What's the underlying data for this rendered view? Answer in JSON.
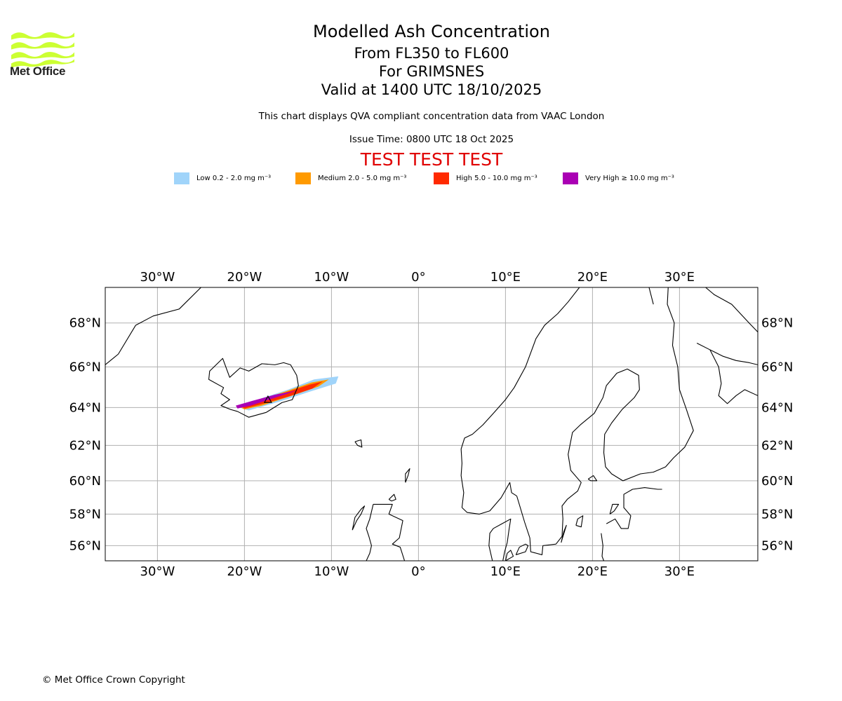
{
  "header": {
    "org_name": "Met Office",
    "title": "Modelled Ash Concentration",
    "flight_levels": "From FL350 to FL600",
    "volcano": "For GRIMSNES",
    "valid_time": "Valid at 1400 UTC 18/10/2025",
    "description": "This chart displays QVA compliant concentration data from VAAC London",
    "issue_time": "Issue Time: 0800 UTC 18 Oct 2025",
    "test_banner": "TEST TEST TEST"
  },
  "legend": [
    {
      "label": "Low 0.2 - 2.0 mg m⁻³",
      "color": "#a0d4fa"
    },
    {
      "label": "Medium 2.0 - 5.0 mg m⁻³",
      "color": "#ff9a00"
    },
    {
      "label": "High 5.0 - 10.0 mg m⁻³",
      "color": "#ff2a00"
    },
    {
      "label": "Very High ≥ 10.0 mg m⁻³",
      "color": "#aa00b4"
    }
  ],
  "map": {
    "lon_range": [
      -36,
      39
    ],
    "lat_range": [
      55,
      69.5
    ],
    "lon_ticks": [
      {
        "value": -30,
        "label": "30°W"
      },
      {
        "value": -20,
        "label": "20°W"
      },
      {
        "value": -10,
        "label": "10°W"
      },
      {
        "value": 0,
        "label": "0°"
      },
      {
        "value": 10,
        "label": "10°E"
      },
      {
        "value": 20,
        "label": "20°E"
      },
      {
        "value": 30,
        "label": "30°E"
      }
    ],
    "lat_ticks": [
      {
        "value": 68,
        "label": "68°N"
      },
      {
        "value": 66,
        "label": "66°N"
      },
      {
        "value": 64,
        "label": "64°N"
      },
      {
        "value": 62,
        "label": "62°N"
      },
      {
        "value": 60,
        "label": "60°N"
      },
      {
        "value": 58,
        "label": "58°N"
      },
      {
        "value": 56,
        "label": "56°N"
      }
    ],
    "ash_plume": {
      "source_lonlat": [
        -17.3,
        64.4
      ],
      "low": [
        [
          -20.6,
          64.0
        ],
        [
          -18.5,
          64.4
        ],
        [
          -15.0,
          64.9
        ],
        [
          -12.0,
          65.4
        ],
        [
          -9.2,
          65.55
        ],
        [
          -9.5,
          65.2
        ],
        [
          -12.5,
          64.8
        ],
        [
          -16.0,
          64.3
        ],
        [
          -19.5,
          63.85
        ]
      ],
      "medium": [
        [
          -20.4,
          64.0
        ],
        [
          -18.5,
          64.35
        ],
        [
          -15.0,
          64.85
        ],
        [
          -12.3,
          65.25
        ],
        [
          -10.3,
          65.4
        ],
        [
          -11.5,
          65.05
        ],
        [
          -14.5,
          64.6
        ],
        [
          -18.0,
          64.1
        ],
        [
          -20.0,
          63.9
        ]
      ],
      "high": [
        [
          -20.3,
          64.05
        ],
        [
          -18.0,
          64.4
        ],
        [
          -15.0,
          64.8
        ],
        [
          -12.5,
          65.15
        ],
        [
          -11.0,
          65.3
        ],
        [
          -12.2,
          64.95
        ],
        [
          -15.0,
          64.55
        ],
        [
          -18.2,
          64.15
        ],
        [
          -20.0,
          63.95
        ]
      ],
      "very_high": [
        [
          -21.0,
          64.1
        ],
        [
          -19.0,
          64.35
        ],
        [
          -16.5,
          64.65
        ],
        [
          -14.0,
          64.85
        ],
        [
          -16.8,
          64.45
        ],
        [
          -19.3,
          64.1
        ],
        [
          -20.8,
          63.95
        ]
      ]
    },
    "coastlines": [
      [
        [
          -20.8,
          63.8
        ],
        [
          -19.5,
          63.5
        ],
        [
          -17.5,
          63.75
        ],
        [
          -15.7,
          64.25
        ],
        [
          -14.5,
          64.4
        ],
        [
          -13.8,
          65.1
        ],
        [
          -14.0,
          65.6
        ],
        [
          -14.7,
          66.1
        ],
        [
          -15.5,
          66.2
        ],
        [
          -16.5,
          66.1
        ],
        [
          -18.0,
          66.15
        ],
        [
          -19.5,
          65.8
        ],
        [
          -20.5,
          65.95
        ],
        [
          -21.7,
          65.5
        ],
        [
          -22.5,
          66.4
        ],
        [
          -24.0,
          65.8
        ],
        [
          -24.1,
          65.4
        ],
        [
          -22.4,
          65.0
        ],
        [
          -22.7,
          64.7
        ],
        [
          -21.7,
          64.4
        ],
        [
          -22.7,
          64.1
        ],
        [
          -21.6,
          63.9
        ],
        [
          -20.8,
          63.8
        ]
      ],
      [
        [
          -36,
          66.1
        ],
        [
          -34.5,
          66.6
        ],
        [
          -32.5,
          67.9
        ],
        [
          -30.5,
          68.3
        ],
        [
          -27.5,
          68.6
        ],
        [
          -25.0,
          69.5
        ]
      ],
      [
        [
          -7.3,
          62.2
        ],
        [
          -6.6,
          62.3
        ],
        [
          -6.5,
          61.9
        ],
        [
          -7.0,
          62.0
        ],
        [
          -7.3,
          62.2
        ]
      ],
      [
        [
          -5.2,
          58.6
        ],
        [
          -3.0,
          58.6
        ],
        [
          -3.4,
          58.0
        ],
        [
          -1.8,
          57.6
        ],
        [
          -2.2,
          56.5
        ],
        [
          -3.0,
          56.1
        ],
        [
          -2.1,
          55.9
        ],
        [
          -1.6,
          55.0
        ]
      ],
      [
        [
          -6.0,
          55.0
        ],
        [
          -5.6,
          55.5
        ],
        [
          -5.4,
          56.0
        ],
        [
          -5.7,
          56.6
        ],
        [
          -6.0,
          57.1
        ],
        [
          -5.6,
          57.7
        ],
        [
          -5.2,
          58.6
        ]
      ],
      [
        [
          -7.6,
          57.0
        ],
        [
          -7.1,
          57.6
        ],
        [
          -6.6,
          58.0
        ],
        [
          -6.2,
          58.5
        ],
        [
          -6.6,
          58.3
        ],
        [
          -7.3,
          57.8
        ],
        [
          -7.6,
          57.0
        ]
      ],
      [
        [
          -1.5,
          59.9
        ],
        [
          -1.2,
          60.3
        ],
        [
          -1.0,
          60.7
        ],
        [
          -1.5,
          60.4
        ],
        [
          -1.5,
          59.9
        ]
      ],
      [
        [
          -3.4,
          58.9
        ],
        [
          -2.8,
          59.2
        ],
        [
          -2.6,
          58.9
        ],
        [
          -3.1,
          58.8
        ],
        [
          -3.4,
          58.9
        ]
      ],
      [
        [
          8.5,
          55.0
        ],
        [
          8.1,
          56.0
        ],
        [
          8.2,
          56.8
        ],
        [
          8.6,
          57.1
        ],
        [
          9.6,
          57.4
        ],
        [
          10.6,
          57.7
        ],
        [
          10.4,
          57.0
        ],
        [
          10.2,
          56.2
        ],
        [
          9.9,
          55.6
        ],
        [
          9.7,
          55.0
        ]
      ],
      [
        [
          5.0,
          58.4
        ],
        [
          5.6,
          58.1
        ],
        [
          7.0,
          58.0
        ],
        [
          8.2,
          58.2
        ],
        [
          9.5,
          59.0
        ],
        [
          10.5,
          59.9
        ],
        [
          10.7,
          59.3
        ],
        [
          11.3,
          59.1
        ]
      ],
      [
        [
          5.0,
          58.4
        ],
        [
          5.2,
          59.3
        ],
        [
          4.9,
          60.3
        ],
        [
          5.0,
          61.0
        ],
        [
          4.9,
          61.8
        ],
        [
          5.3,
          62.4
        ],
        [
          6.2,
          62.6
        ],
        [
          7.4,
          63.1
        ],
        [
          8.6,
          63.7
        ],
        [
          10.0,
          64.4
        ],
        [
          11.0,
          65.0
        ],
        [
          12.3,
          66.0
        ],
        [
          13.5,
          67.3
        ],
        [
          14.5,
          67.9
        ],
        [
          16.0,
          68.4
        ],
        [
          17.2,
          68.9
        ],
        [
          18.5,
          69.5
        ]
      ],
      [
        [
          11.3,
          59.1
        ],
        [
          11.7,
          58.4
        ],
        [
          12.2,
          57.5
        ],
        [
          12.8,
          56.5
        ],
        [
          12.9,
          55.6
        ],
        [
          14.2,
          55.4
        ],
        [
          14.3,
          56.0
        ],
        [
          15.8,
          56.1
        ],
        [
          16.5,
          56.6
        ],
        [
          16.6,
          57.7
        ],
        [
          16.5,
          58.5
        ],
        [
          17.1,
          58.9
        ],
        [
          18.3,
          59.4
        ],
        [
          18.7,
          59.9
        ],
        [
          17.5,
          60.6
        ],
        [
          17.2,
          61.5
        ],
        [
          17.7,
          62.7
        ],
        [
          18.6,
          63.1
        ],
        [
          20.2,
          63.7
        ],
        [
          21.2,
          64.5
        ],
        [
          21.6,
          65.1
        ],
        [
          22.8,
          65.7
        ],
        [
          24.0,
          65.9
        ],
        [
          25.3,
          65.6
        ],
        [
          25.4,
          64.9
        ],
        [
          24.8,
          64.5
        ],
        [
          23.4,
          63.9
        ],
        [
          22.2,
          63.2
        ],
        [
          21.4,
          62.6
        ],
        [
          21.3,
          61.6
        ],
        [
          21.5,
          60.8
        ],
        [
          22.2,
          60.4
        ],
        [
          23.5,
          60.0
        ],
        [
          25.5,
          60.4
        ],
        [
          27.0,
          60.5
        ],
        [
          28.4,
          60.8
        ],
        [
          29.3,
          61.3
        ],
        [
          30.6,
          61.9
        ],
        [
          31.6,
          62.8
        ],
        [
          30.8,
          63.9
        ],
        [
          30.0,
          64.9
        ],
        [
          29.8,
          66.0
        ],
        [
          29.2,
          67.0
        ],
        [
          29.4,
          68.0
        ],
        [
          28.6,
          68.8
        ],
        [
          28.7,
          69.5
        ]
      ],
      [
        [
          21.0,
          56.8
        ],
        [
          21.2,
          56.0
        ],
        [
          21.1,
          55.3
        ],
        [
          21.3,
          55.0
        ]
      ],
      [
        [
          21.6,
          57.4
        ],
        [
          22.6,
          57.7
        ],
        [
          23.3,
          57.1
        ],
        [
          24.1,
          57.1
        ],
        [
          24.4,
          57.9
        ],
        [
          23.6,
          58.4
        ],
        [
          23.6,
          59.2
        ],
        [
          24.6,
          59.5
        ],
        [
          26.0,
          59.6
        ],
        [
          27.5,
          59.5
        ],
        [
          28.0,
          59.5
        ]
      ],
      [
        [
          22.0,
          58.0
        ],
        [
          22.3,
          58.6
        ],
        [
          23.0,
          58.6
        ],
        [
          22.5,
          58.2
        ],
        [
          22.0,
          58.0
        ]
      ],
      [
        [
          18.1,
          57.3
        ],
        [
          18.3,
          57.7
        ],
        [
          18.9,
          57.9
        ],
        [
          18.7,
          57.2
        ],
        [
          18.1,
          57.3
        ]
      ],
      [
        [
          16.4,
          56.2
        ],
        [
          16.7,
          56.9
        ],
        [
          17.0,
          57.3
        ],
        [
          16.5,
          56.4
        ],
        [
          16.4,
          56.2
        ]
      ],
      [
        [
          19.5,
          60.1
        ],
        [
          20.1,
          60.3
        ],
        [
          20.5,
          60.0
        ],
        [
          19.8,
          60.0
        ],
        [
          19.5,
          60.1
        ]
      ],
      [
        [
          10.0,
          55.0
        ],
        [
          10.9,
          55.3
        ],
        [
          10.6,
          55.7
        ],
        [
          10.2,
          55.5
        ],
        [
          10.0,
          55.0
        ]
      ],
      [
        [
          11.2,
          55.4
        ],
        [
          12.3,
          55.6
        ],
        [
          12.6,
          56.0
        ],
        [
          12.3,
          56.1
        ],
        [
          11.6,
          55.9
        ],
        [
          11.2,
          55.4
        ]
      ],
      [
        [
          21.0,
          55.0
        ],
        [
          23.0,
          55.0
        ]
      ],
      [
        [
          33.0,
          69.5
        ],
        [
          34.0,
          69.2
        ],
        [
          36.0,
          68.8
        ],
        [
          38.0,
          68.0
        ],
        [
          39.0,
          67.6
        ]
      ],
      [
        [
          32.0,
          67.1
        ],
        [
          33.5,
          66.8
        ],
        [
          34.5,
          66.0
        ],
        [
          34.8,
          65.2
        ],
        [
          34.5,
          64.6
        ],
        [
          35.5,
          64.2
        ],
        [
          36.5,
          64.6
        ],
        [
          37.5,
          64.9
        ],
        [
          39.0,
          64.6
        ]
      ],
      [
        [
          39.0,
          66.1
        ],
        [
          38.0,
          66.2
        ],
        [
          36.5,
          66.3
        ],
        [
          35.0,
          66.5
        ],
        [
          33.5,
          66.8
        ]
      ],
      [
        [
          27.0,
          68.8
        ],
        [
          26.5,
          69.5
        ]
      ]
    ]
  }
}
